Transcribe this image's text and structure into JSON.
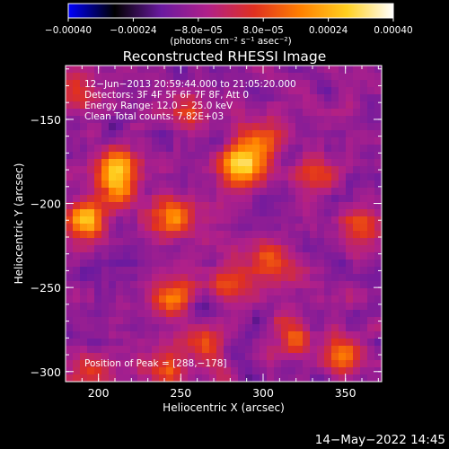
{
  "chart_data": {
    "type": "heatmap",
    "title": "Reconstructed RHESSI Image",
    "xlabel": "Heliocentric X (arcsec)",
    "ylabel": "Heliocentric Y (arcsec)",
    "xlim": [
      180,
      372
    ],
    "ylim": [
      -306,
      -118
    ],
    "x_ticks": [
      {
        "value": 200,
        "label": "200"
      },
      {
        "value": 250,
        "label": "250"
      },
      {
        "value": 300,
        "label": "300"
      },
      {
        "value": 350,
        "label": "350"
      }
    ],
    "y_ticks": [
      {
        "value": -150,
        "label": "−150"
      },
      {
        "value": -200,
        "label": "−200"
      },
      {
        "value": -250,
        "label": "−250"
      },
      {
        "value": -300,
        "label": "−300"
      }
    ],
    "colorbar": {
      "range": [
        -0.0004,
        0.0004
      ],
      "ticks": [
        {
          "value": -0.0004,
          "label": "−0.00040"
        },
        {
          "value": -0.00024,
          "label": "−0.00024"
        },
        {
          "value": -8e-05,
          "label": "−8.0e−05"
        },
        {
          "value": 8e-05,
          "label": "8.0e−05"
        },
        {
          "value": 0.00024,
          "label": "0.00024"
        },
        {
          "value": 0.0004,
          "label": "0.00040"
        }
      ],
      "unit_label": "(photons cm⁻² s⁻¹ asec⁻²)",
      "colors": [
        "#0000ff",
        "#000000",
        "#6a1aa0",
        "#b0208a",
        "#e03020",
        "#ff8000",
        "#ffd020",
        "#ffffff"
      ]
    },
    "annotations": [
      "12−Jun−2013 20:59:44.000 to 21:05:20.000",
      "Detectors: 3F 4F 5F 6F 7F 8F, Att 0",
      "Energy Range: 12.0 − 25.0 keV",
      "Clean     Total counts: 7.82E+03"
    ],
    "peak_label": "Position of Peak = [288,−178]",
    "peak": {
      "x": 288,
      "y": -178
    },
    "bright_regions": [
      {
        "x": 287,
        "y": -178,
        "level": 1.0
      },
      {
        "x": 192,
        "y": -210,
        "level": 0.85
      },
      {
        "x": 212,
        "y": -178,
        "level": 0.7
      },
      {
        "x": 245,
        "y": -208,
        "level": 0.65
      },
      {
        "x": 213,
        "y": -192,
        "level": 0.55
      },
      {
        "x": 300,
        "y": -160,
        "level": 0.5
      },
      {
        "x": 305,
        "y": -235,
        "level": 0.55
      },
      {
        "x": 280,
        "y": -248,
        "level": 0.5
      },
      {
        "x": 245,
        "y": -255,
        "level": 0.55
      },
      {
        "x": 350,
        "y": -290,
        "level": 0.5
      },
      {
        "x": 240,
        "y": -298,
        "level": 0.45
      },
      {
        "x": 360,
        "y": -215,
        "level": 0.45
      },
      {
        "x": 335,
        "y": -185,
        "level": 0.4
      },
      {
        "x": 195,
        "y": -300,
        "level": 0.4
      },
      {
        "x": 185,
        "y": -135,
        "level": 0.4
      },
      {
        "x": 255,
        "y": -145,
        "level": 0.35
      },
      {
        "x": 320,
        "y": -280,
        "level": 0.45
      },
      {
        "x": 265,
        "y": -285,
        "level": 0.4
      }
    ]
  },
  "footer": {
    "date": "14−May−2022 14:45"
  }
}
